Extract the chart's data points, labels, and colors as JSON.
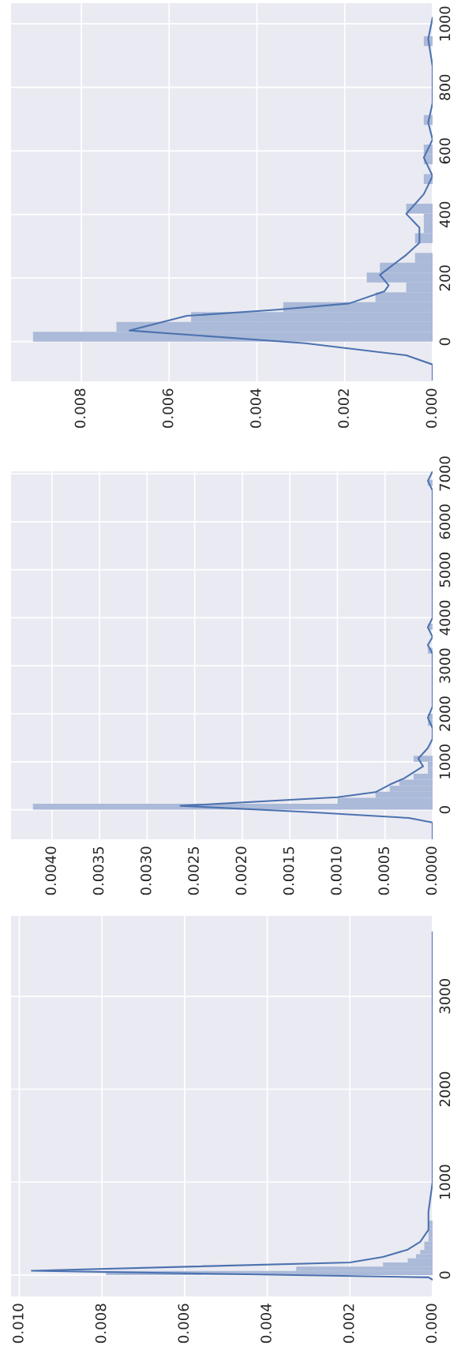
{
  "chart_data": [
    {
      "type": "histogram",
      "orientation": "horizontal",
      "grid": true,
      "xlim": [
        0.0096,
        0
      ],
      "ylim": [
        -125,
        1065
      ],
      "xticks": [
        {
          "value": 0.008,
          "label": "0.008"
        },
        {
          "value": 0.006,
          "label": "0.006"
        },
        {
          "value": 0.004,
          "label": "0.004"
        },
        {
          "value": 0.002,
          "label": "0.002"
        },
        {
          "value": 0,
          "label": "0.000"
        }
      ],
      "yticks": [
        0,
        200,
        400,
        600,
        800,
        1000
      ],
      "series": [
        {
          "type": "histogram",
          "color": "#abbad8",
          "bins": [
            0,
            31,
            62,
            93,
            124,
            155,
            186,
            217,
            248,
            279,
            310,
            341,
            372,
            403,
            434,
            465,
            496,
            527,
            558,
            589,
            620,
            651,
            682,
            713,
            744,
            775,
            806,
            837,
            868,
            899,
            930,
            961
          ],
          "values": [
            0.0091,
            0.0072,
            0.0055,
            0.0034,
            0.0013,
            0.0006,
            0.0015,
            0.0012,
            0.0004,
            0,
            0.0004,
            0.0002,
            0.0002,
            0.0006,
            0,
            0,
            0.0002,
            0,
            0.0002,
            0.0002,
            0,
            0,
            0.0002,
            0,
            0,
            0,
            0,
            0,
            0,
            0,
            0.0002
          ]
        },
        {
          "type": "line",
          "color": "#4c72b0",
          "x": [
            -120,
            -72,
            -43,
            -5,
            35,
            81,
            100,
            120,
            158,
            177,
            210,
            273,
            311,
            359,
            402,
            464,
            521,
            579,
            636,
            689,
            751,
            866,
            952,
            1019
          ],
          "values": [
            0,
            0,
            0.0006,
            0.0029,
            0.0069,
            0.0056,
            0.0036,
            0.0019,
            0.0011,
            0.001,
            0.0012,
            0.0006,
            0.0003,
            0.0003,
            0.0006,
            0.0002,
            0,
            0.0002,
            0,
            0.0001,
            0,
            0,
            0.0001,
            0
          ]
        }
      ]
    },
    {
      "type": "histogram",
      "orientation": "horizontal",
      "grid": true,
      "xlim": [
        0.00443,
        0
      ],
      "ylim": [
        -615,
        7050
      ],
      "xticks": [
        {
          "value": 0.004,
          "label": "0.0040"
        },
        {
          "value": 0.0035,
          "label": "0.0035"
        },
        {
          "value": 0.003,
          "label": "0.0030"
        },
        {
          "value": 0.0025,
          "label": "0.0025"
        },
        {
          "value": 0.002,
          "label": "0.0020"
        },
        {
          "value": 0.0015,
          "label": "0.0015"
        },
        {
          "value": 0.001,
          "label": "0.0010"
        },
        {
          "value": 0.0005,
          "label": "0.0005"
        },
        {
          "value": 0,
          "label": "0.0000"
        }
      ],
      "yticks": [
        0,
        1000,
        2000,
        3000,
        4000,
        5000,
        6000,
        7000
      ],
      "series": [
        {
          "type": "histogram",
          "color": "#abbad8",
          "bins": [
            0,
            125,
            250,
            375,
            500,
            625,
            750,
            875,
            1000,
            1125,
            1250,
            1375,
            1500,
            1625,
            1750,
            1875,
            2000,
            2125,
            2250,
            2375,
            2500,
            2625,
            2750,
            2875,
            3000,
            3125,
            3250,
            3375,
            3500,
            3625,
            3750,
            3875,
            4000,
            4125,
            4250,
            4375,
            4500,
            4625,
            4750,
            4875,
            5000,
            5125,
            5250,
            5375,
            5500,
            5625,
            5750,
            5875,
            6000,
            6125,
            6250,
            6375,
            6500,
            6625,
            6750,
            6875,
            7000
          ],
          "values": [
            0.0042,
            0.001,
            0.0006,
            0.00045,
            0.00035,
            0.0002,
            5e-05,
            5e-05,
            0.0002,
            0,
            0,
            0,
            0,
            0,
            5e-05,
            5e-05,
            0,
            0,
            0,
            0,
            0,
            0,
            0,
            0,
            0,
            0,
            5e-05,
            0,
            0,
            0,
            5e-05,
            0,
            0,
            0,
            0,
            0,
            0,
            0,
            0,
            0,
            0,
            0,
            0,
            0,
            0,
            0,
            0,
            0,
            0,
            0,
            0,
            0,
            0,
            0,
            5e-05,
            0
          ]
        },
        {
          "type": "line",
          "color": "#4c72b0",
          "x": [
            -600,
            -266,
            -171,
            -44,
            82,
            260,
            367,
            523,
            654,
            904,
            1066,
            1285,
            1477,
            1700,
            1917,
            2150,
            3250,
            3430,
            3600,
            3800,
            4000,
            6650,
            6850,
            7050
          ],
          "values": [
            0,
            0,
            0.00025,
            0.00135,
            0.00265,
            0.001,
            0.0006,
            0.00045,
            0.0003,
            0.0001,
            0.00015,
            5e-05,
            0,
            0,
            5e-05,
            0,
            0,
            5e-05,
            0,
            5e-05,
            0,
            0,
            5e-05,
            0
          ]
        }
      ]
    },
    {
      "type": "histogram",
      "orientation": "horizontal",
      "grid": true,
      "xlim": [
        0.0102,
        0
      ],
      "ylim": [
        -230,
        3865
      ],
      "xticks": [
        {
          "value": 0.01,
          "label": "0.010"
        },
        {
          "value": 0.008,
          "label": "0.008"
        },
        {
          "value": 0.006,
          "label": "0.006"
        },
        {
          "value": 0.004,
          "label": "0.004"
        },
        {
          "value": 0.002,
          "label": "0.002"
        },
        {
          "value": 0,
          "label": "0.000"
        }
      ],
      "yticks": [
        0,
        1000,
        2000,
        3000
      ],
      "series": [
        {
          "type": "histogram",
          "color": "#abbad8",
          "bins": [
            0,
            45,
            90,
            135,
            180,
            225,
            270,
            315,
            360,
            405,
            450,
            495,
            540,
            585,
            630,
            675,
            720,
            765,
            810,
            855,
            900
          ],
          "values": [
            0.0079,
            0.0033,
            0.0012,
            0.0006,
            0.0004,
            0.0003,
            0.0002,
            0.0002,
            0.0001,
            0.0001,
            0.0001,
            0.0001,
            0.0001,
            0,
            0,
            0,
            0,
            0,
            0,
            0
          ]
        },
        {
          "type": "line",
          "color": "#4c72b0",
          "x": [
            -50,
            -25,
            46,
            136,
            195,
            274,
            357,
            487,
            683,
            1000,
            1700,
            2500,
            3688
          ],
          "values": [
            0,
            0.0001,
            0.0097,
            0.002,
            0.0012,
            0.0006,
            0.0003,
            0.0001,
            0.0001,
            0,
            0,
            0,
            0
          ]
        }
      ]
    }
  ]
}
